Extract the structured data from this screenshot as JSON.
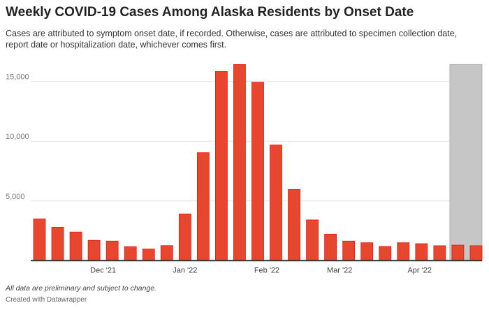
{
  "title": "Weekly COVID-19 Cases Among Alaska Residents by Onset Date",
  "subtitle": "Cases are attributed to symptom onset date, if recorded. Otherwise, cases are attributed to specimen collection date, report date or hospitalization date, whichever comes first.",
  "note": "All data are preliminary and subject to change.",
  "credit": "Created with Datawrapper",
  "colors": {
    "bar": "#e8472f",
    "bar_stroke": "#e01a10",
    "shade": "#c6c6c6"
  },
  "chart_data": {
    "type": "bar",
    "xlabel": "",
    "ylabel": "",
    "ylim": [
      0,
      16500
    ],
    "yticks": [
      {
        "v": 5000,
        "label": "5,000"
      },
      {
        "v": 10000,
        "label": "10,000"
      },
      {
        "v": 15000,
        "label": "15,000"
      }
    ],
    "xticks": [
      {
        "i": 3.5,
        "label": "Dec '21"
      },
      {
        "i": 8,
        "label": "Jan '22"
      },
      {
        "i": 12.5,
        "label": "Feb '22"
      },
      {
        "i": 16.5,
        "label": "Mar '22"
      },
      {
        "i": 20.9,
        "label": "Apr '22"
      }
    ],
    "values": [
      3490,
      2800,
      2400,
      1700,
      1640,
      1170,
      970,
      1260,
      3910,
      9040,
      15840,
      16420,
      14940,
      9680,
      5960,
      3410,
      2220,
      1640,
      1500,
      1190,
      1500,
      1420,
      1250,
      1300,
      1250
    ],
    "shaded_region": {
      "from_index": 23,
      "to_index": 24,
      "label": "preliminary"
    },
    "grid": true
  }
}
